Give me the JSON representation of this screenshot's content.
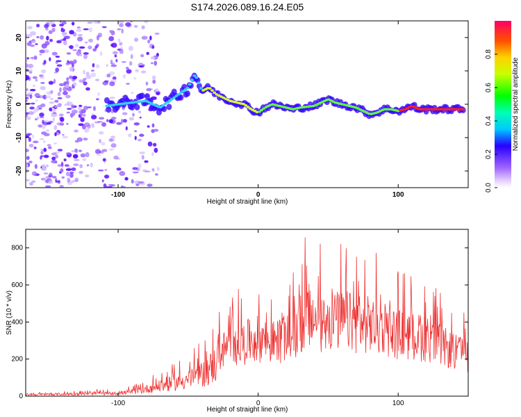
{
  "title": "S174.2026.089.16.24.E05",
  "chart_data": [
    {
      "type": "heatmap",
      "xlabel": "Height of straight line (km)",
      "ylabel": "Frequency (Hz)",
      "xlim": [
        -166,
        150
      ],
      "ylim": [
        -25,
        25
      ],
      "x_ticks": [
        -100,
        0,
        100
      ],
      "y_ticks": [
        -20,
        -10,
        0,
        10,
        20
      ],
      "ridge_trace": {
        "x": [
          -108,
          -100,
          -90,
          -80,
          -70,
          -60,
          -50,
          -45,
          -40,
          -35,
          -30,
          -25,
          -20,
          -10,
          -5,
          0,
          5,
          10,
          20,
          25,
          30,
          40,
          45,
          50,
          55,
          60,
          70,
          75,
          80,
          85,
          90,
          95,
          100,
          105,
          110,
          115,
          120,
          125,
          130,
          140,
          147
        ],
        "y": [
          -0.5,
          0,
          0.5,
          1,
          -1,
          2,
          5,
          9,
          4,
          5,
          3,
          2,
          1,
          0,
          -1.5,
          -2.5,
          -1,
          0,
          -1,
          -1.5,
          -1,
          -0.5,
          0.5,
          1.5,
          0.5,
          0,
          -1,
          -2,
          -3,
          -2.5,
          -1.5,
          -1.5,
          -2,
          -1.5,
          -0.5,
          -1.5,
          -1.5,
          -1.5,
          -1.5,
          -1.5,
          -1.5
        ]
      },
      "colorbar": {
        "label": "Normalized spectral amplitude",
        "range": [
          0,
          1
        ],
        "ticks": [
          "0.0",
          "0.2",
          "0.4",
          "0.6",
          "0.8"
        ]
      }
    },
    {
      "type": "line",
      "xlabel": "Height of straight line (km)",
      "ylabel": "SNR (10 * v/v)",
      "xlim": [
        -166,
        150
      ],
      "ylim": [
        0,
        900
      ],
      "x_ticks": [
        -100,
        0,
        100
      ],
      "y_ticks": [
        0,
        200,
        400,
        600,
        800
      ],
      "color": "#ee3030",
      "envelope": {
        "x": [
          -166,
          -100,
          -90,
          -80,
          -60,
          -40,
          -30,
          -25,
          -20,
          -10,
          0,
          10,
          20,
          30,
          33,
          40,
          60,
          80,
          100,
          120,
          140,
          150
        ],
        "y": [
          20,
          40,
          60,
          100,
          180,
          300,
          450,
          520,
          560,
          600,
          650,
          600,
          650,
          720,
          890,
          820,
          850,
          800,
          700,
          650,
          500,
          450
        ]
      }
    }
  ]
}
